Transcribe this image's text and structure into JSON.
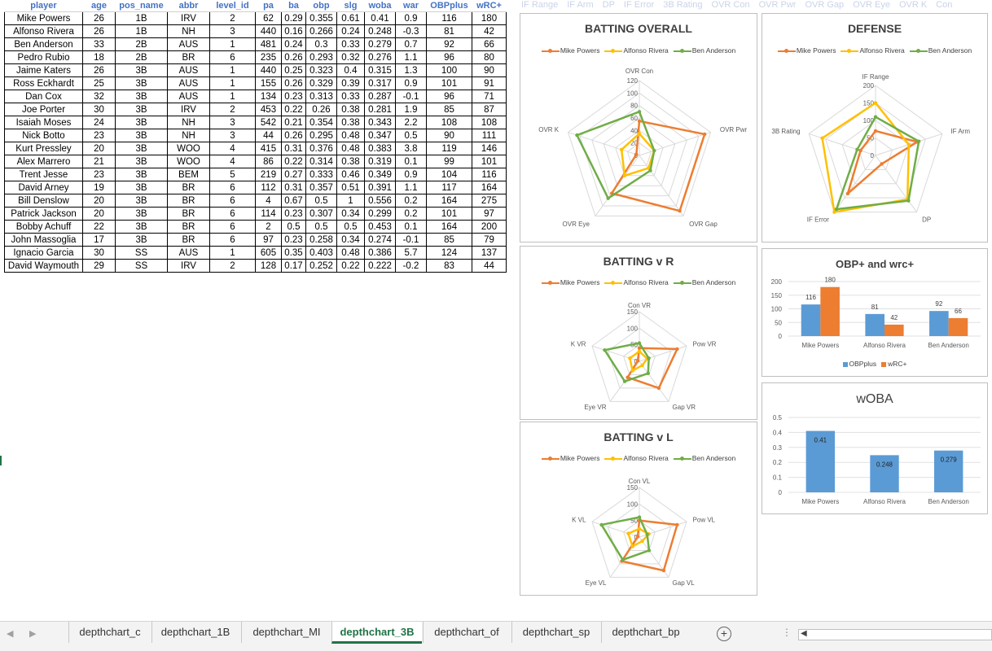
{
  "columns": [
    "player",
    "age",
    "pos_name",
    "abbr",
    "level_id",
    "pa",
    "ba",
    "obp",
    "slg",
    "woba",
    "war",
    "OBPplus",
    "wRC+"
  ],
  "faded_headers": [
    "IF Range",
    "IF Arm",
    "DP",
    "IF Error",
    "3B Rating",
    "OVR Con",
    "OVR Pwr",
    "OVR Gap",
    "OVR Eye",
    "OVR K",
    "Con"
  ],
  "rows": [
    [
      "Mike Powers",
      "26",
      "1B",
      "IRV",
      "2",
      "62",
      "0.29",
      "0.355",
      "0.61",
      "0.41",
      "0.9",
      "116",
      "180"
    ],
    [
      "Alfonso Rivera",
      "26",
      "1B",
      "NH",
      "3",
      "440",
      "0.16",
      "0.266",
      "0.24",
      "0.248",
      "-0.3",
      "81",
      "42"
    ],
    [
      "Ben Anderson",
      "33",
      "2B",
      "AUS",
      "1",
      "481",
      "0.24",
      "0.3",
      "0.33",
      "0.279",
      "0.7",
      "92",
      "66"
    ],
    [
      "Pedro Rubio",
      "18",
      "2B",
      "BR",
      "6",
      "235",
      "0.26",
      "0.293",
      "0.32",
      "0.276",
      "1.1",
      "96",
      "80"
    ],
    [
      "Jaime Katers",
      "26",
      "3B",
      "AUS",
      "1",
      "440",
      "0.25",
      "0.323",
      "0.4",
      "0.315",
      "1.3",
      "100",
      "90"
    ],
    [
      "Ross Eckhardt",
      "25",
      "3B",
      "AUS",
      "1",
      "155",
      "0.26",
      "0.329",
      "0.39",
      "0.317",
      "0.9",
      "101",
      "91"
    ],
    [
      "Dan Cox",
      "32",
      "3B",
      "AUS",
      "1",
      "134",
      "0.23",
      "0.313",
      "0.33",
      "0.287",
      "-0.1",
      "96",
      "71"
    ],
    [
      "Joe Porter",
      "30",
      "3B",
      "IRV",
      "2",
      "453",
      "0.22",
      "0.26",
      "0.38",
      "0.281",
      "1.9",
      "85",
      "87"
    ],
    [
      "Isaiah Moses",
      "24",
      "3B",
      "NH",
      "3",
      "542",
      "0.21",
      "0.354",
      "0.38",
      "0.343",
      "2.2",
      "108",
      "108"
    ],
    [
      "Nick Botto",
      "23",
      "3B",
      "NH",
      "3",
      "44",
      "0.26",
      "0.295",
      "0.48",
      "0.347",
      "0.5",
      "90",
      "111"
    ],
    [
      "Kurt Pressley",
      "20",
      "3B",
      "WOO",
      "4",
      "415",
      "0.31",
      "0.376",
      "0.48",
      "0.383",
      "3.8",
      "119",
      "146"
    ],
    [
      "Alex Marrero",
      "21",
      "3B",
      "WOO",
      "4",
      "86",
      "0.22",
      "0.314",
      "0.38",
      "0.319",
      "0.1",
      "99",
      "101"
    ],
    [
      "Trent Jesse",
      "23",
      "3B",
      "BEM",
      "5",
      "219",
      "0.27",
      "0.333",
      "0.46",
      "0.349",
      "0.9",
      "104",
      "116"
    ],
    [
      "David Arney",
      "19",
      "3B",
      "BR",
      "6",
      "112",
      "0.31",
      "0.357",
      "0.51",
      "0.391",
      "1.1",
      "117",
      "164"
    ],
    [
      "Bill Denslow",
      "20",
      "3B",
      "BR",
      "6",
      "4",
      "0.67",
      "0.5",
      "1",
      "0.556",
      "0.2",
      "164",
      "275"
    ],
    [
      "Patrick Jackson",
      "20",
      "3B",
      "BR",
      "6",
      "114",
      "0.23",
      "0.307",
      "0.34",
      "0.299",
      "0.2",
      "101",
      "97"
    ],
    [
      "Bobby Achuff",
      "22",
      "3B",
      "BR",
      "6",
      "2",
      "0.5",
      "0.5",
      "0.5",
      "0.453",
      "0.1",
      "164",
      "200"
    ],
    [
      "John Massoglia",
      "17",
      "3B",
      "BR",
      "6",
      "97",
      "0.23",
      "0.258",
      "0.34",
      "0.274",
      "-0.1",
      "85",
      "79"
    ],
    [
      "Ignacio Garcia",
      "30",
      "SS",
      "AUS",
      "1",
      "605",
      "0.35",
      "0.403",
      "0.48",
      "0.386",
      "5.7",
      "124",
      "137"
    ],
    [
      "David Waymouth",
      "29",
      "SS",
      "IRV",
      "2",
      "128",
      "0.17",
      "0.252",
      "0.22",
      "0.222",
      "-0.2",
      "83",
      "44"
    ]
  ],
  "colors": {
    "mike": "#ed7d31",
    "alfonso": "#ffc000",
    "ben": "#70ad47",
    "obp": "#5b9bd5",
    "wrc": "#ed7d31",
    "excel_green": "#217346"
  },
  "legend_names": [
    "Mike Powers",
    "Alfonso Rivera",
    "Ben Anderson"
  ],
  "chart_data": [
    {
      "id": "batting_overall",
      "type": "radar",
      "title": "BATTING OVERALL",
      "axes": [
        "OVR Con",
        "OVR Pwr",
        "OVR Gap",
        "OVR Eye",
        "OVR K"
      ],
      "ticks": [
        0,
        20,
        40,
        60,
        80,
        100,
        120
      ],
      "series": [
        {
          "name": "Mike Powers",
          "values": [
            55,
            110,
            110,
            75,
            5
          ]
        },
        {
          "name": "Alfonso Rivera",
          "values": [
            35,
            25,
            25,
            40,
            30
          ]
        },
        {
          "name": "Ben Anderson",
          "values": [
            70,
            25,
            30,
            85,
            105
          ]
        }
      ]
    },
    {
      "id": "defense",
      "type": "radar",
      "title": "DEFENSE",
      "axes": [
        "IF Range",
        "IF Arm",
        "DP",
        "IF Error",
        "3B Rating"
      ],
      "ticks": [
        0,
        50,
        100,
        150,
        200
      ],
      "series": [
        {
          "name": "Mike Powers",
          "values": [
            70,
            125,
            30,
            135,
            45
          ]
        },
        {
          "name": "Alfonso Rivera",
          "values": [
            150,
            100,
            155,
            200,
            160
          ]
        },
        {
          "name": "Ben Anderson",
          "values": [
            110,
            130,
            160,
            190,
            55
          ]
        }
      ]
    },
    {
      "id": "batting_vr",
      "type": "radar",
      "title": "BATTING v R",
      "axes": [
        "Con VR",
        "Pow VR",
        "Gap VR",
        "Eye VR",
        "K VR"
      ],
      "ticks": [
        0,
        50,
        100,
        150
      ],
      "series": [
        {
          "name": "Mike Powers",
          "values": [
            40,
            120,
            100,
            60,
            5
          ]
        },
        {
          "name": "Alfonso Rivera",
          "values": [
            30,
            25,
            15,
            35,
            30
          ]
        },
        {
          "name": "Ben Anderson",
          "values": [
            55,
            30,
            45,
            75,
            110
          ]
        }
      ]
    },
    {
      "id": "batting_vl",
      "type": "radar",
      "title": "BATTING v L",
      "axes": [
        "Con VL",
        "Pow VL",
        "Gap VL",
        "Eye VL",
        "K VL"
      ],
      "ticks": [
        0,
        50,
        100,
        150
      ],
      "series": [
        {
          "name": "Mike Powers",
          "values": [
            50,
            120,
            125,
            90,
            5
          ]
        },
        {
          "name": "Alfonso Rivera",
          "values": [
            25,
            30,
            15,
            35,
            35
          ]
        },
        {
          "name": "Ben Anderson",
          "values": [
            60,
            25,
            50,
            85,
            120
          ]
        }
      ]
    },
    {
      "id": "obp_wrc",
      "type": "bar",
      "title": "OBP+ and wrc+",
      "categories": [
        "Mike Powers",
        "Alfonso Rivera",
        "Ben Anderson"
      ],
      "series": [
        {
          "name": "OBPplus",
          "values": [
            116,
            81,
            92
          ]
        },
        {
          "name": "wRC+",
          "values": [
            180,
            42,
            66
          ]
        }
      ],
      "ylim": [
        0,
        200
      ],
      "yticks": [
        0,
        50,
        100,
        150,
        200
      ]
    },
    {
      "id": "woba",
      "type": "bar",
      "title": "wOBA",
      "categories": [
        "Mike Powers",
        "Alfonso Rivera",
        "Ben Anderson"
      ],
      "series": [
        {
          "name": "wOBA",
          "values": [
            0.41,
            0.248,
            0.279
          ]
        }
      ],
      "ylim": [
        0,
        0.5
      ],
      "yticks": [
        0,
        0.1,
        0.2,
        0.3,
        0.4,
        0.5
      ]
    }
  ],
  "tabs": [
    "depthchart_c",
    "depthchart_1B",
    "depthchart_MI",
    "depthchart_3B",
    "depthchart_of",
    "depthchart_sp",
    "depthchart_bp"
  ],
  "active_tab": "depthchart_3B"
}
